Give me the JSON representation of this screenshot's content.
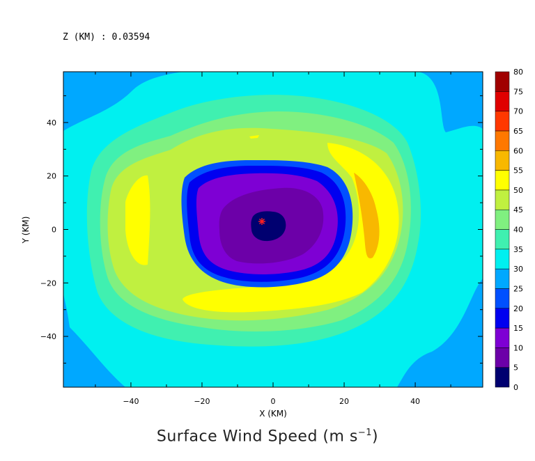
{
  "header": {
    "level_label": "Z (KM) : 0.03594"
  },
  "footer": {
    "title_main": "Surface Wind Speed (m s",
    "title_exp": "−1",
    "title_close": ")"
  },
  "chart_data": {
    "type": "heatmap",
    "title": "Surface Wind Speed (m s⁻¹)",
    "subtitle": "Z (KM) : 0.03594",
    "xlabel": "X (KM)",
    "ylabel": "Y (KM)",
    "xlim": [
      -59,
      59
    ],
    "ylim": [
      -59,
      59
    ],
    "xticks": [
      -40,
      -20,
      0,
      20,
      40
    ],
    "yticks": [
      -40,
      -20,
      0,
      20,
      40
    ],
    "colorbar": {
      "levels": [
        0,
        5,
        10,
        15,
        20,
        25,
        30,
        35,
        40,
        45,
        50,
        55,
        60,
        65,
        70,
        75,
        80
      ],
      "colors": [
        "#000070",
        "#6c00a8",
        "#7e00d4",
        "#0000f0",
        "#0050ff",
        "#00a8ff",
        "#00f0f0",
        "#40f0b0",
        "#80f080",
        "#c0f040",
        "#ffff00",
        "#f8b800",
        "#ff7800",
        "#ff3800",
        "#e00000",
        "#a00000"
      ]
    },
    "storm_center": {
      "x": -3,
      "y": 3,
      "marker": "*"
    },
    "field": {
      "description": "approximate contour bands of wind speed (m/s) around storm center",
      "bands": [
        {
          "min": 25,
          "max": 30,
          "region": "outer corners"
        },
        {
          "min": 30,
          "max": 35,
          "region": "broad outer ring"
        },
        {
          "min": 35,
          "max": 40,
          "region": "ring"
        },
        {
          "min": 40,
          "max": 45,
          "region": "ring"
        },
        {
          "min": 45,
          "max": 50,
          "region": "ring"
        },
        {
          "min": 50,
          "max": 55,
          "region": "east and south crescent, west patch"
        },
        {
          "min": 55,
          "max": 60,
          "region": "east crescent max"
        },
        {
          "min": 15,
          "max": 25,
          "region": "eyewall inner edge"
        },
        {
          "min": 5,
          "max": 15,
          "region": "eye region"
        },
        {
          "min": 0,
          "max": 5,
          "region": "eye center"
        }
      ]
    }
  }
}
